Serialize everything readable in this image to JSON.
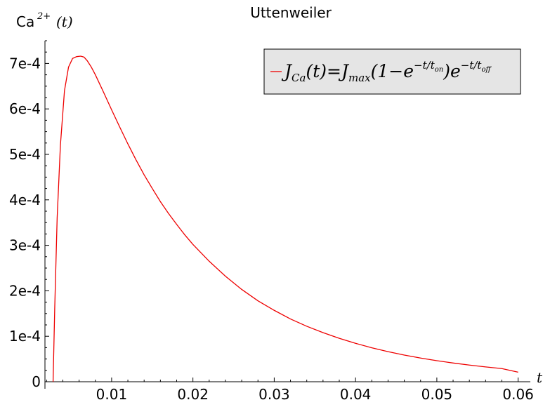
{
  "chart_data": {
    "type": "line",
    "title": "Uttenweiler",
    "ylabel": "Ca",
    "ylabel_sup": "2+",
    "ylabel_arg": "(t)",
    "xlabel": "t",
    "xlim": [
      0.0018,
      0.0615
    ],
    "ylim": [
      0,
      0.00075
    ],
    "x_ticks": [
      0.01,
      0.02,
      0.03,
      0.04,
      0.05,
      0.06
    ],
    "x_tick_labels": [
      "0.01",
      "0.02",
      "0.03",
      "0.04",
      "0.05",
      "0.06"
    ],
    "y_ticks": [
      0,
      0.0001,
      0.0002,
      0.0003,
      0.0004,
      0.0005,
      0.0006,
      0.0007
    ],
    "y_tick_labels": [
      "0",
      "1e-4",
      "2e-4",
      "3e-4",
      "4e-4",
      "5e-4",
      "6e-4",
      "7e-4"
    ],
    "grid": false,
    "legend_position": "top-right",
    "series": [
      {
        "name": "J_Ca(t) = J_max(1 − e^(−t/t_on)) e^(−t/t_off)",
        "color": "#ee0000",
        "x": [
          0.0028,
          0.003,
          0.0033,
          0.0037,
          0.0042,
          0.0047,
          0.0052,
          0.0057,
          0.0062,
          0.0066,
          0.007,
          0.0075,
          0.008,
          0.009,
          0.01,
          0.011,
          0.012,
          0.013,
          0.014,
          0.015,
          0.016,
          0.017,
          0.018,
          0.019,
          0.02,
          0.022,
          0.024,
          0.026,
          0.028,
          0.03,
          0.032,
          0.034,
          0.036,
          0.038,
          0.04,
          0.042,
          0.044,
          0.046,
          0.048,
          0.05,
          0.052,
          0.054,
          0.056,
          0.058,
          0.06
        ],
        "y": [
          0,
          0.00016,
          0.00036,
          0.00052,
          0.00064,
          0.000692,
          0.000711,
          0.000715,
          0.000716,
          0.000714,
          0.000706,
          0.000692,
          0.000675,
          0.000637,
          0.000598,
          0.00056,
          0.000523,
          0.000488,
          0.000455,
          0.000425,
          0.000396,
          0.00037,
          0.000346,
          0.000323,
          0.000302,
          0.000265,
          0.000232,
          0.000203,
          0.000178,
          0.000157,
          0.000138,
          0.000122,
          0.000108,
          9.55e-05,
          8.45e-05,
          7.47e-05,
          6.62e-05,
          5.87e-05,
          5.21e-05,
          4.63e-05,
          4.12e-05,
          3.66e-05,
          3.26e-05,
          2.9e-05,
          2.1e-05
        ]
      }
    ]
  }
}
